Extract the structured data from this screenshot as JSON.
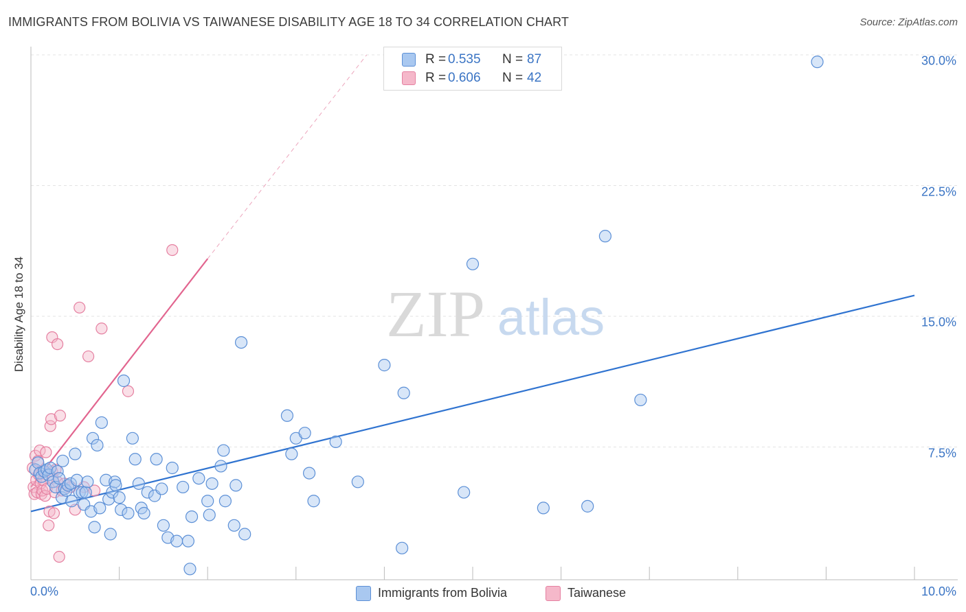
{
  "header": {
    "title": "IMMIGRANTS FROM BOLIVIA VS TAIWANESE DISABILITY AGE 18 TO 34 CORRELATION CHART",
    "source": "Source: ZipAtlas.com"
  },
  "stats": {
    "rows": [
      {
        "r_label": "R =",
        "r_value": "0.535",
        "n_label": "N =",
        "n_value": "87"
      },
      {
        "r_label": "R =",
        "r_value": "0.606",
        "n_label": "N =",
        "n_value": "42"
      }
    ]
  },
  "legend": {
    "items": [
      {
        "label": "Immigrants from Bolivia"
      },
      {
        "label": "Taiwanese"
      }
    ]
  },
  "watermark": {
    "zip": "ZIP",
    "atlas": "atlas"
  },
  "colors": {
    "blue_fill": "#a9c8f0",
    "blue_stroke": "#5b8fd6",
    "blue_line": "#2f73d0",
    "pink_fill": "#f5b8ca",
    "pink_stroke": "#e57fa0",
    "pink_line": "#e2658f",
    "grid": "#e3e3e3",
    "tick_text": "#3a74c4"
  },
  "chart_data": {
    "type": "scatter",
    "title": "IMMIGRANTS FROM BOLIVIA VS TAIWANESE DISABILITY AGE 18 TO 34 CORRELATION CHART",
    "xlabel": "",
    "ylabel": "Disability Age 18 to 34",
    "xlim": [
      0,
      10
    ],
    "ylim": [
      0,
      31
    ],
    "x_tick_labels": [
      "0.0%",
      "10.0%"
    ],
    "y_ticks": [
      {
        "value": 7.5,
        "label": "7.5%"
      },
      {
        "value": 15.0,
        "label": "15.0%"
      },
      {
        "value": 22.5,
        "label": "22.5%"
      },
      {
        "value": 30.0,
        "label": "30.0%"
      }
    ],
    "grid": true,
    "legend_position": "bottom-center",
    "series": [
      {
        "name": "Immigrants from Bolivia",
        "r": 0.535,
        "n": 87,
        "trend": {
          "x": [
            0.0,
            10.0
          ],
          "y": [
            3.8,
            16.2
          ],
          "dashed_extension": false
        },
        "points": [
          [
            0.05,
            6.2
          ],
          [
            0.08,
            6.6
          ],
          [
            0.1,
            6.0
          ],
          [
            0.12,
            5.8
          ],
          [
            0.15,
            6.1
          ],
          [
            0.18,
            6.2
          ],
          [
            0.2,
            5.9
          ],
          [
            0.22,
            6.3
          ],
          [
            0.25,
            5.5
          ],
          [
            0.28,
            5.2
          ],
          [
            0.3,
            6.1
          ],
          [
            0.32,
            5.7
          ],
          [
            0.35,
            4.6
          ],
          [
            0.36,
            6.7
          ],
          [
            0.38,
            5.1
          ],
          [
            0.4,
            5.0
          ],
          [
            0.42,
            5.3
          ],
          [
            0.45,
            5.4
          ],
          [
            0.46,
            4.4
          ],
          [
            0.5,
            7.1
          ],
          [
            0.52,
            5.6
          ],
          [
            0.55,
            4.9
          ],
          [
            0.58,
            4.9
          ],
          [
            0.6,
            4.2
          ],
          [
            0.62,
            4.9
          ],
          [
            0.64,
            5.5
          ],
          [
            0.68,
            3.8
          ],
          [
            0.7,
            8.0
          ],
          [
            0.72,
            2.9
          ],
          [
            0.75,
            7.6
          ],
          [
            0.78,
            4.0
          ],
          [
            0.8,
            8.9
          ],
          [
            0.85,
            5.6
          ],
          [
            0.88,
            4.5
          ],
          [
            0.9,
            2.5
          ],
          [
            0.92,
            4.9
          ],
          [
            0.95,
            5.5
          ],
          [
            0.96,
            5.3
          ],
          [
            1.0,
            4.6
          ],
          [
            1.02,
            3.9
          ],
          [
            1.05,
            11.3
          ],
          [
            1.1,
            3.7
          ],
          [
            1.15,
            8.0
          ],
          [
            1.18,
            6.8
          ],
          [
            1.22,
            5.4
          ],
          [
            1.25,
            4.0
          ],
          [
            1.28,
            3.7
          ],
          [
            1.32,
            4.9
          ],
          [
            1.4,
            4.7
          ],
          [
            1.42,
            6.8
          ],
          [
            1.48,
            5.1
          ],
          [
            1.5,
            3.0
          ],
          [
            1.55,
            2.3
          ],
          [
            1.6,
            6.3
          ],
          [
            1.65,
            2.1
          ],
          [
            1.72,
            5.2
          ],
          [
            1.78,
            2.1
          ],
          [
            1.8,
            0.5
          ],
          [
            1.82,
            3.5
          ],
          [
            1.9,
            5.7
          ],
          [
            2.0,
            4.4
          ],
          [
            2.02,
            3.6
          ],
          [
            2.05,
            5.4
          ],
          [
            2.15,
            6.4
          ],
          [
            2.18,
            7.3
          ],
          [
            2.2,
            4.4
          ],
          [
            2.3,
            3.0
          ],
          [
            2.32,
            5.3
          ],
          [
            2.42,
            2.5
          ],
          [
            2.38,
            13.5
          ],
          [
            2.9,
            9.3
          ],
          [
            2.95,
            7.1
          ],
          [
            3.0,
            8.0
          ],
          [
            3.1,
            8.3
          ],
          [
            3.15,
            6.0
          ],
          [
            3.2,
            4.4
          ],
          [
            3.45,
            7.8
          ],
          [
            3.7,
            5.5
          ],
          [
            4.0,
            12.2
          ],
          [
            4.2,
            1.7
          ],
          [
            4.22,
            10.6
          ],
          [
            4.9,
            4.9
          ],
          [
            5.0,
            18.0
          ],
          [
            5.8,
            4.0
          ],
          [
            6.3,
            4.1
          ],
          [
            6.5,
            19.6
          ],
          [
            6.9,
            10.2
          ],
          [
            8.9,
            29.6
          ]
        ]
      },
      {
        "name": "Taiwanese",
        "r": 0.606,
        "n": 42,
        "trend": {
          "x": [
            0.0,
            2.0
          ],
          "y": [
            5.2,
            18.3
          ],
          "dashed_to": [
            3.8,
            30.0
          ]
        },
        "points": [
          [
            0.02,
            6.3
          ],
          [
            0.03,
            5.2
          ],
          [
            0.04,
            4.8
          ],
          [
            0.05,
            7.0
          ],
          [
            0.06,
            5.6
          ],
          [
            0.07,
            4.9
          ],
          [
            0.08,
            6.7
          ],
          [
            0.09,
            5.9
          ],
          [
            0.1,
            7.3
          ],
          [
            0.11,
            5.4
          ],
          [
            0.12,
            4.8
          ],
          [
            0.13,
            5.0
          ],
          [
            0.14,
            5.6
          ],
          [
            0.15,
            6.1
          ],
          [
            0.16,
            4.7
          ],
          [
            0.17,
            7.2
          ],
          [
            0.18,
            5.1
          ],
          [
            0.2,
            3.0
          ],
          [
            0.21,
            3.8
          ],
          [
            0.22,
            8.7
          ],
          [
            0.23,
            9.1
          ],
          [
            0.24,
            6.1
          ],
          [
            0.25,
            5.7
          ],
          [
            0.26,
            3.7
          ],
          [
            0.27,
            4.9
          ],
          [
            0.24,
            13.8
          ],
          [
            0.28,
            6.2
          ],
          [
            0.3,
            5.5
          ],
          [
            0.3,
            13.4
          ],
          [
            0.32,
            1.2
          ],
          [
            0.33,
            9.3
          ],
          [
            0.35,
            5.0
          ],
          [
            0.38,
            5.4
          ],
          [
            0.45,
            5.2
          ],
          [
            0.5,
            3.9
          ],
          [
            0.55,
            15.5
          ],
          [
            0.6,
            5.2
          ],
          [
            0.65,
            12.7
          ],
          [
            0.72,
            5.0
          ],
          [
            0.8,
            14.3
          ],
          [
            1.1,
            10.7
          ],
          [
            1.6,
            18.8
          ]
        ]
      }
    ]
  }
}
